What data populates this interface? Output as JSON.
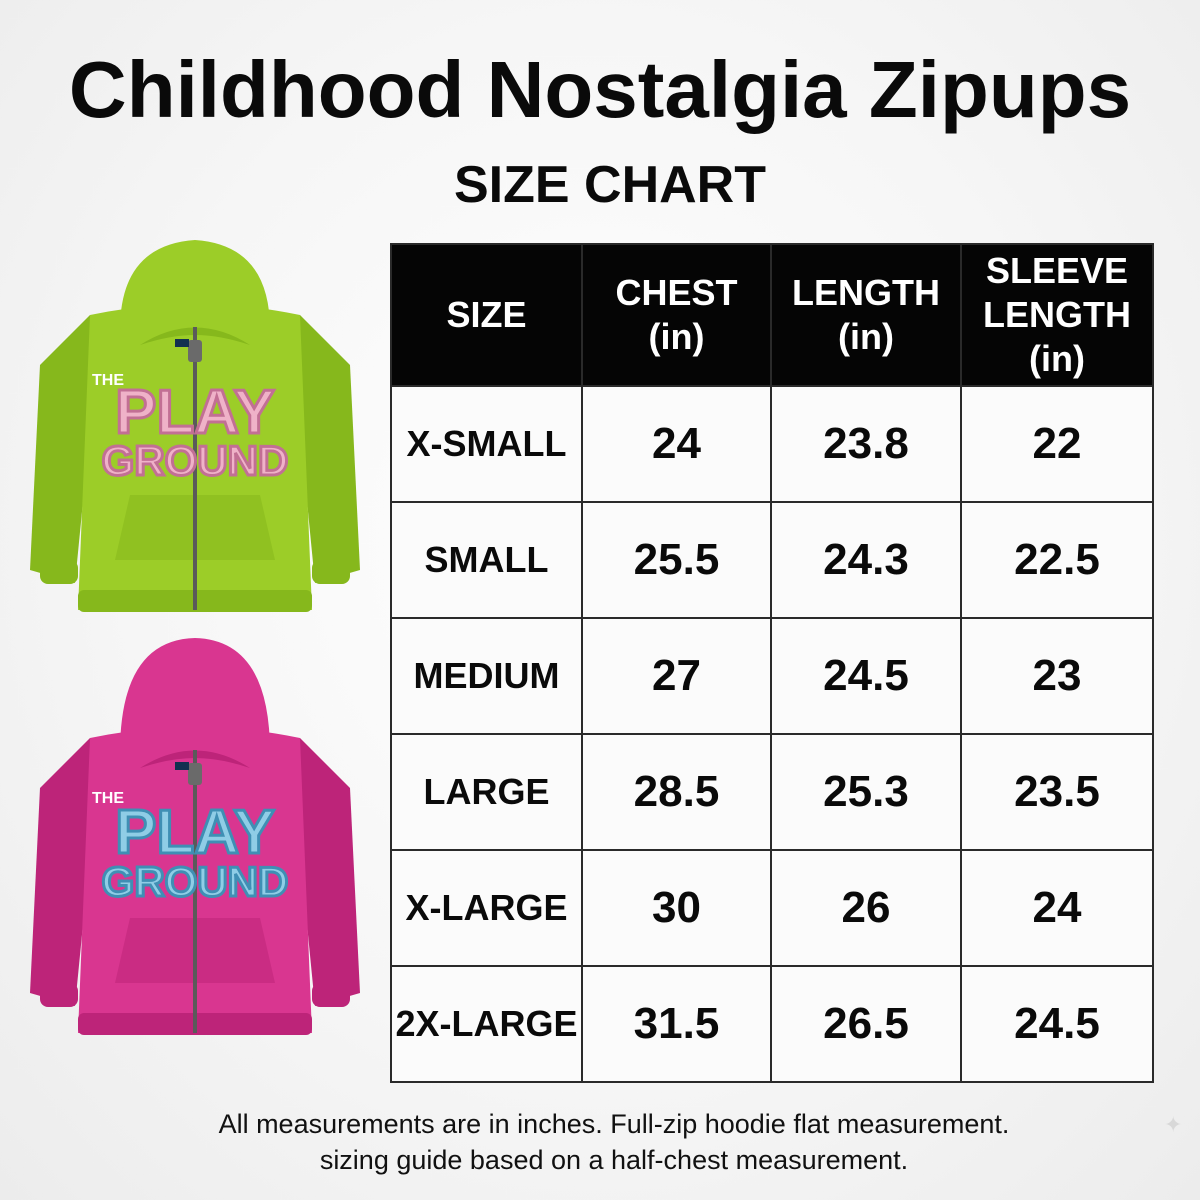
{
  "header": {
    "title": "Childhood Nostalgia Zipups",
    "subtitle": "SIZE CHART"
  },
  "products": [
    {
      "name": "green-hoodie",
      "body_color": "#9ccd28",
      "shade_color": "#86b81c",
      "patch_color": "#efb2c8",
      "patch_outline": "#c26f94",
      "small_text": "THE",
      "line1": "PLAY",
      "line2": "GROUND"
    },
    {
      "name": "pink-hoodie",
      "body_color": "#d93690",
      "shade_color": "#bd2479",
      "patch_color": "#8fcde6",
      "patch_outline": "#3f8fb4",
      "small_text": "THE",
      "line1": "PLAY",
      "line2": "GROUND"
    }
  ],
  "table": {
    "headers": [
      "SIZE",
      "CHEST\n(in)",
      "LENGTH\n(in)",
      "SLEEVE\nLENGTH\n(in)"
    ],
    "rows": [
      [
        "X-SMALL",
        "24",
        "23.8",
        "22"
      ],
      [
        "SMALL",
        "25.5",
        "24.3",
        "22.5"
      ],
      [
        "MEDIUM",
        "27",
        "24.5",
        "23"
      ],
      [
        "LARGE",
        "28.5",
        "25.3",
        "23.5"
      ],
      [
        "X-LARGE",
        "30",
        "26",
        "24"
      ],
      [
        "2X-LARGE",
        "31.5",
        "26.5",
        "24.5"
      ]
    ]
  },
  "footnote": {
    "line1": "All measurements are in inches. Full-zip hoodie flat measurement.",
    "line2": "sizing guide based on a half-chest measurement."
  },
  "icons": {
    "corner": "sparkle-icon"
  }
}
